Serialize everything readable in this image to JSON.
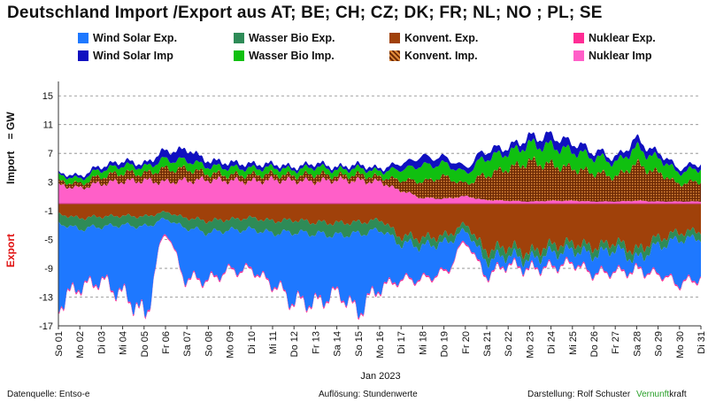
{
  "title": "Deutschland Import /Export  aus AT;  BE;  CH;  CZ;  DK;  FR;  NL;  NO ;  PL;  SE",
  "legend": [
    {
      "label": "Wind Solar Exp.",
      "color": "#1e78ff"
    },
    {
      "label": "Wasser Bio Exp.",
      "color": "#2e8b57"
    },
    {
      "label": "Konvent. Exp.",
      "color": "#a0410a"
    },
    {
      "label": "Nuklear Exp.",
      "color": "#ff2d95"
    },
    {
      "label": "Wind Solar Imp",
      "color": "#1010c0"
    },
    {
      "label": "Wasser Bio Imp.",
      "color": "#10c010"
    },
    {
      "label": "Konvent. Imp.",
      "color": "#b0560f"
    },
    {
      "label": "Nuklear Imp",
      "color": "#ff5fc8"
    }
  ],
  "footer": {
    "source": "Datenquelle: Entso-e",
    "resolution": "Auflösung: Stundenwerte",
    "author": "Darstellung:  Rolf Schuster",
    "brand_green": "Vernunft",
    "brand_rest": "kraft",
    "brand_green_color": "#2aa02a"
  },
  "chart_data": {
    "type": "area",
    "title": "Deutschland Import /Export  aus AT;  BE;  CH;  CZ;  DK;  FR;  NL;  NO ;  PL;  SE",
    "xlabel": "Jan 2023",
    "ylabel_import": "Import    = GW",
    "ylabel_export": "Export",
    "ylim": [
      -17,
      17
    ],
    "yticks": [
      15,
      11,
      7,
      3,
      -1,
      -5,
      -9,
      -13,
      -17
    ],
    "grid": true,
    "legend_position": "top",
    "categories": [
      "So 01",
      "Mo 02",
      "Di 03",
      "Mi 04",
      "Do 05",
      "Fr 06",
      "Sa 07",
      "So 08",
      "Mo 09",
      "Di 10",
      "Mi 11",
      "Do 12",
      "Fr 13",
      "Sa 14",
      "So 15",
      "Mo 16",
      "Di 17",
      "Mi 18",
      "Do 19",
      "Fr 20",
      "Sa 21",
      "So 22",
      "Mo 23",
      "Di 24",
      "Mi 25",
      "Do 26",
      "Fr 27",
      "Sa 28",
      "So 29",
      "Mo 30",
      "Di 31"
    ],
    "import_series": [
      {
        "name": "Nuklear Imp",
        "color": "#ff5fc8",
        "values": [
          2.5,
          2.2,
          2.8,
          3.1,
          3.2,
          3.0,
          3.2,
          3.3,
          3.2,
          3.1,
          3.3,
          3.2,
          3.1,
          3.3,
          3.2,
          3.0,
          1.8,
          0.8,
          0.7,
          1.0,
          0.5,
          0.4,
          0.3,
          0.4,
          0.4,
          0.3,
          0.3,
          0.4,
          0.3,
          0.3,
          0.3
        ]
      },
      {
        "name": "Konvent. Imp.",
        "color": "#b0560f",
        "values": [
          0.6,
          0.6,
          1.0,
          1.2,
          1.0,
          1.8,
          1.6,
          0.9,
          0.8,
          0.9,
          0.8,
          0.7,
          1.0,
          0.6,
          0.8,
          0.7,
          1.5,
          2.3,
          3.0,
          1.8,
          3.5,
          4.5,
          5.5,
          5.0,
          4.5,
          4.0,
          3.5,
          5.0,
          4.0,
          2.5,
          2.8
        ]
      },
      {
        "name": "Wasser Bio Imp.",
        "color": "#10c010",
        "values": [
          0.8,
          0.7,
          0.9,
          1.0,
          0.9,
          1.3,
          1.2,
          1.0,
          1.0,
          0.9,
          0.9,
          0.8,
          1.0,
          0.8,
          0.9,
          0.8,
          1.5,
          2.2,
          1.8,
          1.6,
          2.4,
          2.2,
          2.4,
          2.6,
          2.4,
          2.2,
          2.0,
          2.2,
          2.0,
          1.6,
          1.8
        ]
      },
      {
        "name": "Wind Solar Imp",
        "color": "#1010c0",
        "values": [
          0.3,
          0.4,
          0.5,
          0.6,
          0.5,
          1.2,
          1.5,
          0.8,
          0.7,
          0.6,
          0.5,
          0.4,
          0.5,
          0.4,
          0.5,
          0.4,
          0.8,
          1.2,
          0.9,
          0.8,
          1.0,
          0.8,
          1.0,
          1.4,
          1.2,
          0.8,
          0.7,
          1.2,
          0.8,
          0.6,
          0.7
        ]
      }
    ],
    "export_series": [
      {
        "name": "Konvent. Exp.",
        "color": "#a0410a",
        "values": [
          -1.5,
          -2.0,
          -1.8,
          -1.7,
          -1.8,
          -1.2,
          -2.0,
          -2.4,
          -2.2,
          -2.0,
          -2.4,
          -2.3,
          -2.6,
          -2.7,
          -2.6,
          -2.3,
          -4.5,
          -4.8,
          -4.5,
          -3.0,
          -6.5,
          -6.0,
          -6.8,
          -5.8,
          -5.5,
          -6.0,
          -5.4,
          -6.5,
          -4.8,
          -4.0,
          -3.8
        ]
      },
      {
        "name": "Wasser Bio Exp.",
        "color": "#2e8b57",
        "values": [
          -1.3,
          -1.5,
          -1.4,
          -1.3,
          -1.4,
          -1.0,
          -1.4,
          -1.6,
          -1.5,
          -1.6,
          -1.7,
          -1.7,
          -1.6,
          -1.7,
          -1.6,
          -1.4,
          -1.0,
          -1.1,
          -1.0,
          -0.9,
          -1.3,
          -1.2,
          -1.0,
          -1.1,
          -1.0,
          -1.1,
          -1.0,
          -1.2,
          -1.1,
          -1.0,
          -1.0
        ]
      },
      {
        "name": "Wind Solar Exp.",
        "color": "#1e78ff",
        "values": [
          -11.0,
          -8.0,
          -7.5,
          -9.5,
          -12.0,
          -2.0,
          -7.0,
          -6.5,
          -5.5,
          -5.5,
          -7.0,
          -9.5,
          -9.5,
          -8.0,
          -10.5,
          -8.0,
          -5.0,
          -4.5,
          -4.0,
          -1.5,
          -2.0,
          -1.2,
          -1.2,
          -1.8,
          -1.7,
          -2.5,
          -3.0,
          -1.5,
          -3.8,
          -6.0,
          -5.5
        ]
      },
      {
        "name": "Nuklear Exp.",
        "color": "#ff2d95",
        "values": [
          -0.2,
          -0.2,
          -0.2,
          -0.2,
          -0.2,
          -0.2,
          -0.2,
          -0.2,
          -0.2,
          -0.2,
          -0.2,
          -0.2,
          -0.2,
          -0.2,
          -0.2,
          -0.2,
          -0.2,
          -0.2,
          -0.2,
          -0.2,
          -0.2,
          -0.2,
          -0.2,
          -0.2,
          -0.2,
          -0.2,
          -0.2,
          -0.2,
          -0.2,
          -0.2,
          -0.2
        ]
      }
    ]
  }
}
